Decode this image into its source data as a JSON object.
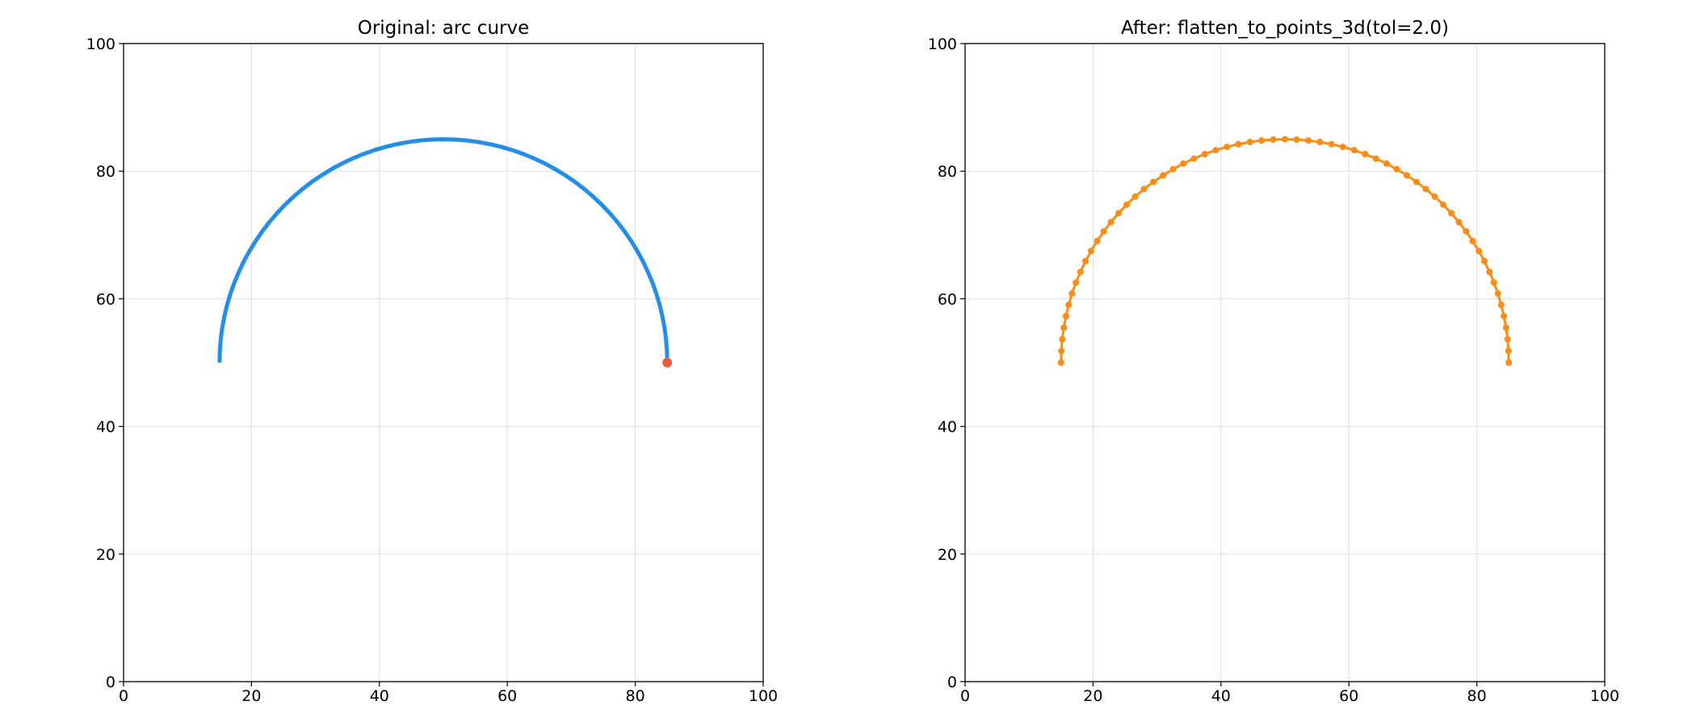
{
  "chart_data": [
    {
      "type": "line",
      "title": "Original: arc curve",
      "xlim": [
        0,
        100
      ],
      "ylim": [
        0,
        100
      ],
      "xticks": [
        0,
        20,
        40,
        60,
        80,
        100
      ],
      "yticks": [
        0,
        20,
        40,
        60,
        80,
        100
      ],
      "grid": true,
      "series": [
        {
          "color": "#1e8ff0",
          "line": true,
          "marker": false,
          "x": [
            15.0,
            15.05,
            15.19,
            15.43,
            15.77,
            16.19,
            16.71,
            17.32,
            18.03,
            18.81,
            19.69,
            20.65,
            21.68,
            22.8,
            23.99,
            25.25,
            26.58,
            27.97,
            29.43,
            30.94,
            32.5,
            34.11,
            35.77,
            37.46,
            39.18,
            40.94,
            42.72,
            44.53,
            46.34,
            48.17,
            50.0,
            51.83,
            53.66,
            55.47,
            57.28,
            59.06,
            60.82,
            62.54,
            64.23,
            65.89,
            67.5,
            69.06,
            70.57,
            72.03,
            73.42,
            74.75,
            76.01,
            77.2,
            78.32,
            79.35,
            80.31,
            81.19,
            81.97,
            82.68,
            83.29,
            83.81,
            84.23,
            84.57,
            84.81,
            84.95,
            85.0
          ],
          "values": [
            50.0,
            51.83,
            53.66,
            55.47,
            57.28,
            59.06,
            60.82,
            62.54,
            64.23,
            65.89,
            67.5,
            69.06,
            70.57,
            72.03,
            73.42,
            74.75,
            76.01,
            77.2,
            78.32,
            79.35,
            80.31,
            81.19,
            81.97,
            82.68,
            83.29,
            83.81,
            84.23,
            84.57,
            84.81,
            84.95,
            85.0,
            84.95,
            84.81,
            84.57,
            84.23,
            83.81,
            83.29,
            82.68,
            81.97,
            81.19,
            80.31,
            79.35,
            78.32,
            77.2,
            76.01,
            74.75,
            73.42,
            72.03,
            70.57,
            69.06,
            67.5,
            65.89,
            64.23,
            62.54,
            60.82,
            59.06,
            57.28,
            55.47,
            53.66,
            51.83,
            50.0
          ]
        },
        {
          "color": "#f05a3c",
          "line": false,
          "marker": true,
          "x": [
            85
          ],
          "values": [
            50
          ]
        }
      ]
    },
    {
      "type": "line",
      "title": "After: flatten_to_points_3d(tol=2.0)",
      "xlim": [
        0,
        100
      ],
      "ylim": [
        0,
        100
      ],
      "xticks": [
        0,
        20,
        40,
        60,
        80,
        100
      ],
      "yticks": [
        0,
        20,
        40,
        60,
        80,
        100
      ],
      "grid": true,
      "series": [
        {
          "color": "#ff8c0f",
          "line": true,
          "marker": true,
          "x": [
            15.0,
            15.05,
            15.19,
            15.43,
            15.77,
            16.19,
            16.71,
            17.32,
            18.03,
            18.81,
            19.69,
            20.65,
            21.68,
            22.8,
            23.99,
            25.25,
            26.58,
            27.97,
            29.43,
            30.94,
            32.5,
            34.11,
            35.77,
            37.46,
            39.18,
            40.94,
            42.72,
            44.53,
            46.34,
            48.17,
            50.0,
            51.83,
            53.66,
            55.47,
            57.28,
            59.06,
            60.82,
            62.54,
            64.23,
            65.89,
            67.5,
            69.06,
            70.57,
            72.03,
            73.42,
            74.75,
            76.01,
            77.2,
            78.32,
            79.35,
            80.31,
            81.19,
            81.97,
            82.68,
            83.29,
            83.81,
            84.23,
            84.57,
            84.81,
            84.95,
            85.0
          ],
          "values": [
            50.0,
            51.83,
            53.66,
            55.47,
            57.28,
            59.06,
            60.82,
            62.54,
            64.23,
            65.89,
            67.5,
            69.06,
            70.57,
            72.03,
            73.42,
            74.75,
            76.01,
            77.2,
            78.32,
            79.35,
            80.31,
            81.19,
            81.97,
            82.68,
            83.29,
            83.81,
            84.23,
            84.57,
            84.81,
            84.95,
            85.0,
            84.95,
            84.81,
            84.57,
            84.23,
            83.81,
            83.29,
            82.68,
            81.97,
            81.19,
            80.31,
            79.35,
            78.32,
            77.2,
            76.01,
            74.75,
            73.42,
            72.03,
            70.57,
            69.06,
            67.5,
            65.89,
            64.23,
            62.54,
            60.82,
            59.06,
            57.28,
            55.47,
            53.66,
            51.83,
            50.0
          ]
        }
      ]
    }
  ]
}
